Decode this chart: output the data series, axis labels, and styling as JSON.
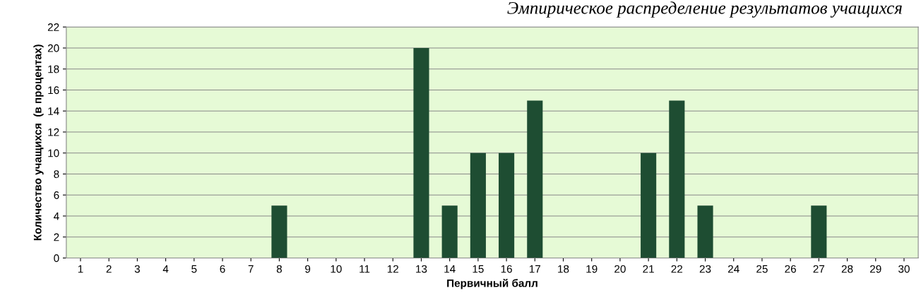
{
  "chart_data": {
    "type": "bar",
    "title": "Эмпирическое распределение результатов учащихся",
    "xlabel": "Первичный балл",
    "ylabel": "Количество учащихся  (в процентах)",
    "categories": [
      "1",
      "2",
      "3",
      "4",
      "5",
      "6",
      "7",
      "8",
      "9",
      "10",
      "11",
      "12",
      "13",
      "14",
      "15",
      "16",
      "17",
      "18",
      "19",
      "20",
      "21",
      "22",
      "23",
      "24",
      "25",
      "26",
      "27",
      "28",
      "29",
      "30"
    ],
    "values": [
      0,
      0,
      0,
      0,
      0,
      0,
      0,
      5,
      0,
      0,
      0,
      0,
      20,
      5,
      10,
      10,
      15,
      0,
      0,
      0,
      10,
      15,
      5,
      0,
      0,
      0,
      5,
      0,
      0,
      0
    ],
    "color": "#1e4d32",
    "ylim": [
      0,
      22
    ],
    "yticks": [
      0,
      2,
      4,
      6,
      8,
      10,
      12,
      14,
      16,
      18,
      20,
      22
    ],
    "grid": "y",
    "legend": false
  }
}
